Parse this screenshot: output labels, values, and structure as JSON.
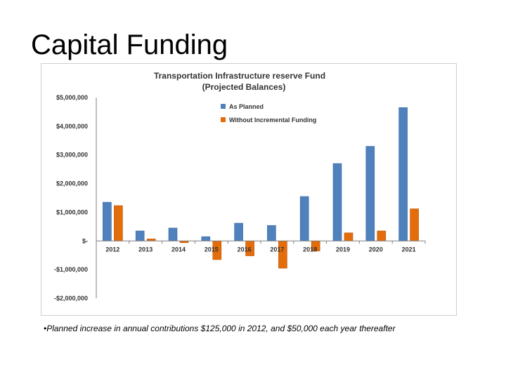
{
  "slide": {
    "title": "Capital Funding",
    "footnote": "•Planned increase in annual contributions $125,000 in 2012, and $50,000 each year thereafter"
  },
  "colors": {
    "as_planned": "#4f81bd",
    "without_incremental": "#e46c0a",
    "axis": "#808080"
  },
  "chart_data": {
    "type": "bar",
    "title": "Transportation Infrastructure reserve Fund",
    "subtitle": "(Projected Balances)",
    "categories": [
      "2012",
      "2013",
      "2014",
      "2015",
      "2016",
      "2017",
      "2018",
      "2019",
      "2020",
      "2021"
    ],
    "series": [
      {
        "name": "As Planned",
        "values": [
          1350000,
          350000,
          450000,
          150000,
          620000,
          540000,
          1550000,
          2700000,
          3300000,
          4650000
        ]
      },
      {
        "name": "Without Incremental Funding",
        "values": [
          1230000,
          70000,
          -60000,
          -650000,
          -520000,
          -950000,
          -350000,
          280000,
          350000,
          1120000
        ]
      }
    ],
    "ylim": [
      -2000000,
      5000000
    ],
    "yticks": [
      5000000,
      4000000,
      3000000,
      2000000,
      1000000,
      0,
      -1000000,
      -2000000
    ],
    "ytick_labels": [
      "$5,000,000",
      "$4,000,000",
      "$3,000,000",
      "$2,000,000",
      "$1,000,000",
      "$-",
      "-$1,000,000",
      "-$2,000,000"
    ],
    "xlabel": "",
    "ylabel": "",
    "grid": false,
    "legend_position": "top-right"
  }
}
